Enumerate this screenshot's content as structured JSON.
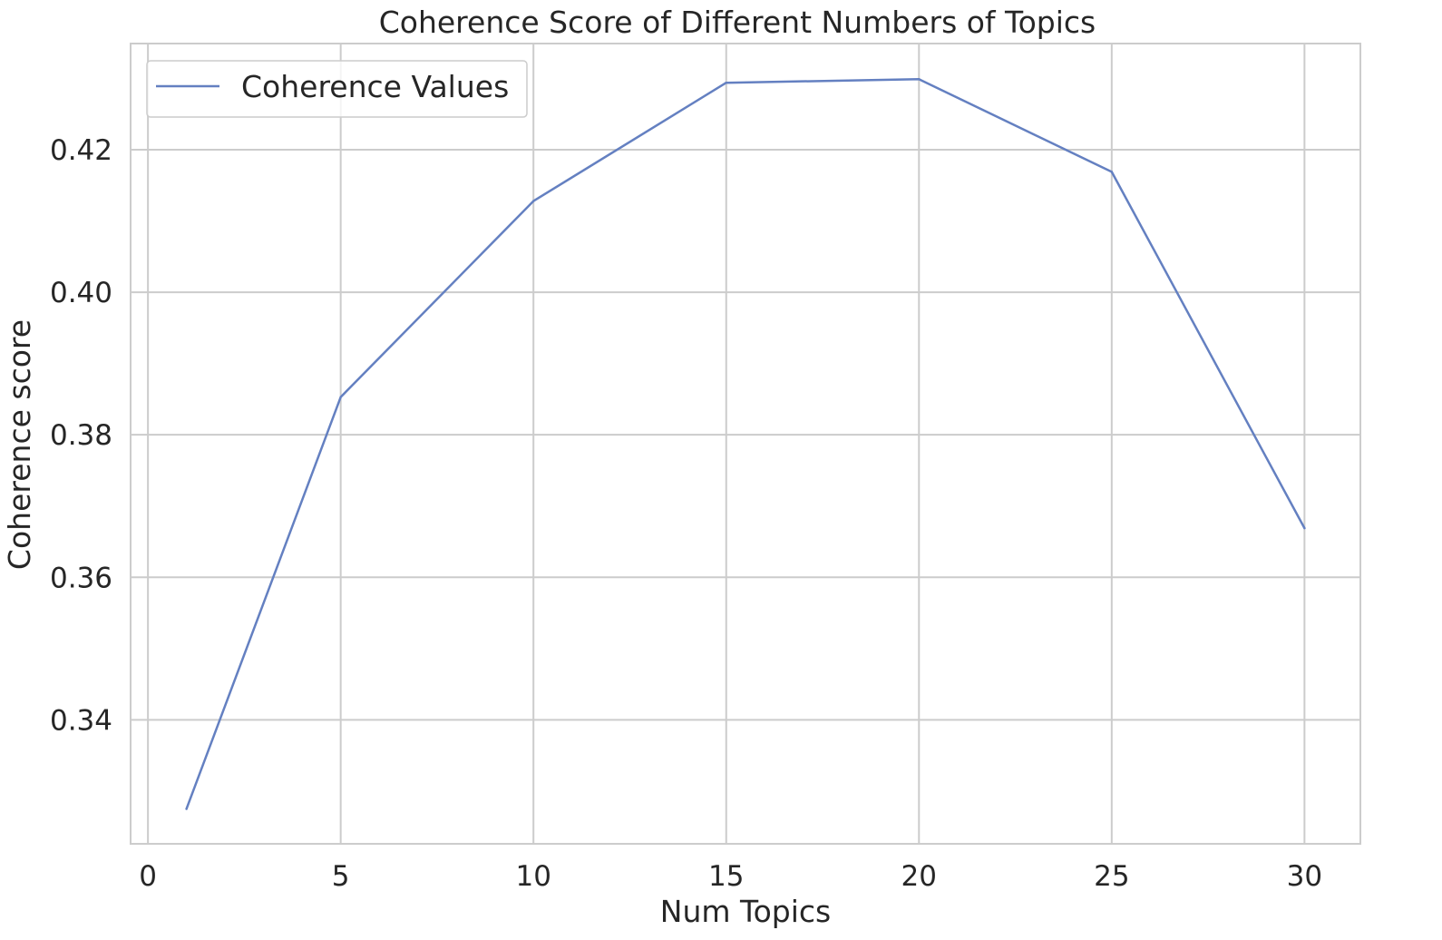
{
  "chart_data": {
    "type": "line",
    "title": "Coherence Score of Different Numbers of Topics",
    "xlabel": "Num Topics",
    "ylabel": "Coherence score",
    "x": [
      1,
      5,
      10,
      15,
      20,
      25,
      30
    ],
    "series": [
      {
        "name": "Coherence Values",
        "values": [
          0.3275,
          0.3853,
          0.4128,
          0.4294,
          0.4299,
          0.4169,
          0.3669
        ],
        "color": "#6480c1"
      }
    ],
    "xlim": [
      -0.45,
      31.45
    ],
    "ylim": [
      0.3226,
      0.4349
    ],
    "x_ticks": [
      0,
      5,
      10,
      15,
      20,
      25,
      30
    ],
    "x_tick_labels": [
      "0",
      "5",
      "10",
      "15",
      "20",
      "25",
      "30"
    ],
    "y_ticks": [
      0.34,
      0.36,
      0.38,
      0.4,
      0.42
    ],
    "y_tick_labels": [
      "0.34",
      "0.36",
      "0.38",
      "0.40",
      "0.42"
    ],
    "grid": true,
    "legend_position": "top-left",
    "colors": {
      "grid": "#cccccc",
      "frame": "#cccccc",
      "text": "#262626",
      "background": "#ffffff"
    }
  }
}
